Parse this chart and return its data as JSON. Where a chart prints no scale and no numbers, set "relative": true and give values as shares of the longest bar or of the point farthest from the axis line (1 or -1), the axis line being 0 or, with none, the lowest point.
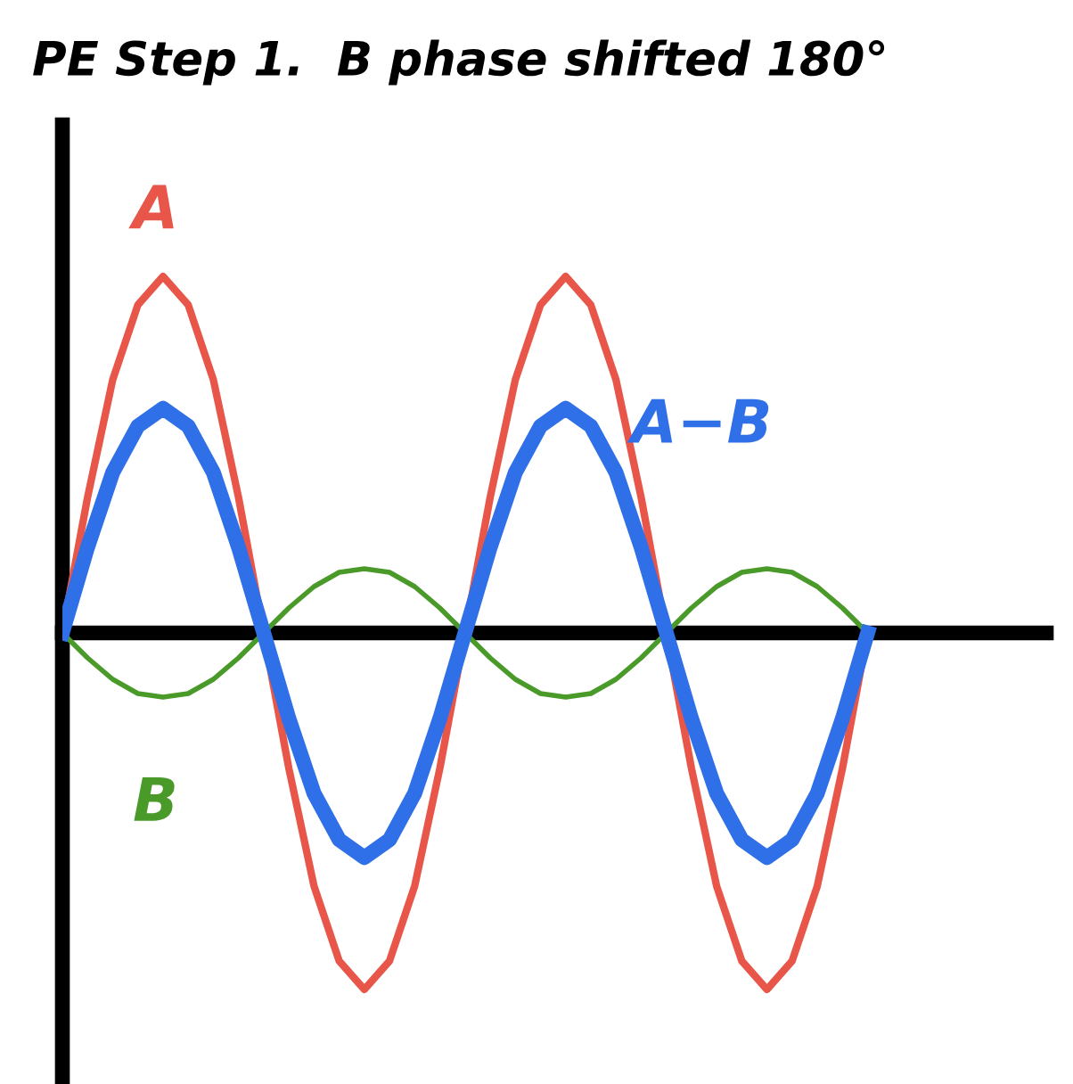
{
  "chart_data": {
    "type": "line",
    "title": "PE Step 1.  B phase shifted 180°",
    "relative": true,
    "legend": false,
    "categories": [
      null,
      null,
      null,
      null,
      null,
      null,
      null,
      null,
      null,
      null,
      null,
      null,
      null,
      null,
      null,
      null,
      null,
      null,
      null,
      null,
      null,
      null,
      null,
      null,
      null,
      null,
      null,
      null,
      null,
      null,
      null,
      null,
      null,
      null,
      null,
      null,
      null,
      null,
      null,
      null
    ],
    "series": [
      {
        "name": "A",
        "color": "#e8564a",
        "values": [
          0,
          0.38,
          0.71,
          0.92,
          1,
          0.92,
          0.71,
          0.38,
          0,
          -0.38,
          -0.71,
          -0.92,
          -1,
          -0.92,
          -0.71,
          -0.38,
          0,
          0.38,
          0.71,
          0.92,
          1,
          0.92,
          0.71,
          0.38,
          0,
          -0.38,
          -0.71,
          -0.92,
          -1,
          -0.92,
          -0.71,
          -0.38,
          0,
          null,
          null,
          null,
          null,
          null,
          null,
          null
        ]
      },
      {
        "name": "A−B",
        "color": "#2f6fe8",
        "values": [
          0,
          0.24,
          0.45,
          0.58,
          0.63,
          0.58,
          0.45,
          0.24,
          0,
          -0.24,
          -0.45,
          -0.58,
          -0.63,
          -0.58,
          -0.45,
          -0.24,
          0,
          0.24,
          0.45,
          0.58,
          0.63,
          0.58,
          0.45,
          0.24,
          0,
          -0.24,
          -0.45,
          -0.58,
          -0.63,
          -0.58,
          -0.45,
          -0.24,
          0,
          null,
          null,
          null,
          null,
          null,
          null,
          null
        ]
      },
      {
        "name": "B",
        "color": "#4a9a2a",
        "values": [
          0,
          -0.07,
          -0.13,
          -0.17,
          -0.18,
          -0.17,
          -0.13,
          -0.07,
          0,
          0.07,
          0.13,
          0.17,
          0.18,
          0.17,
          0.13,
          0.07,
          0,
          -0.07,
          -0.13,
          -0.17,
          -0.18,
          -0.17,
          -0.13,
          -0.07,
          0,
          0.07,
          0.13,
          0.17,
          0.18,
          0.17,
          0.13,
          0.07,
          0,
          null,
          null,
          null,
          null,
          null,
          null,
          null
        ]
      }
    ]
  }
}
